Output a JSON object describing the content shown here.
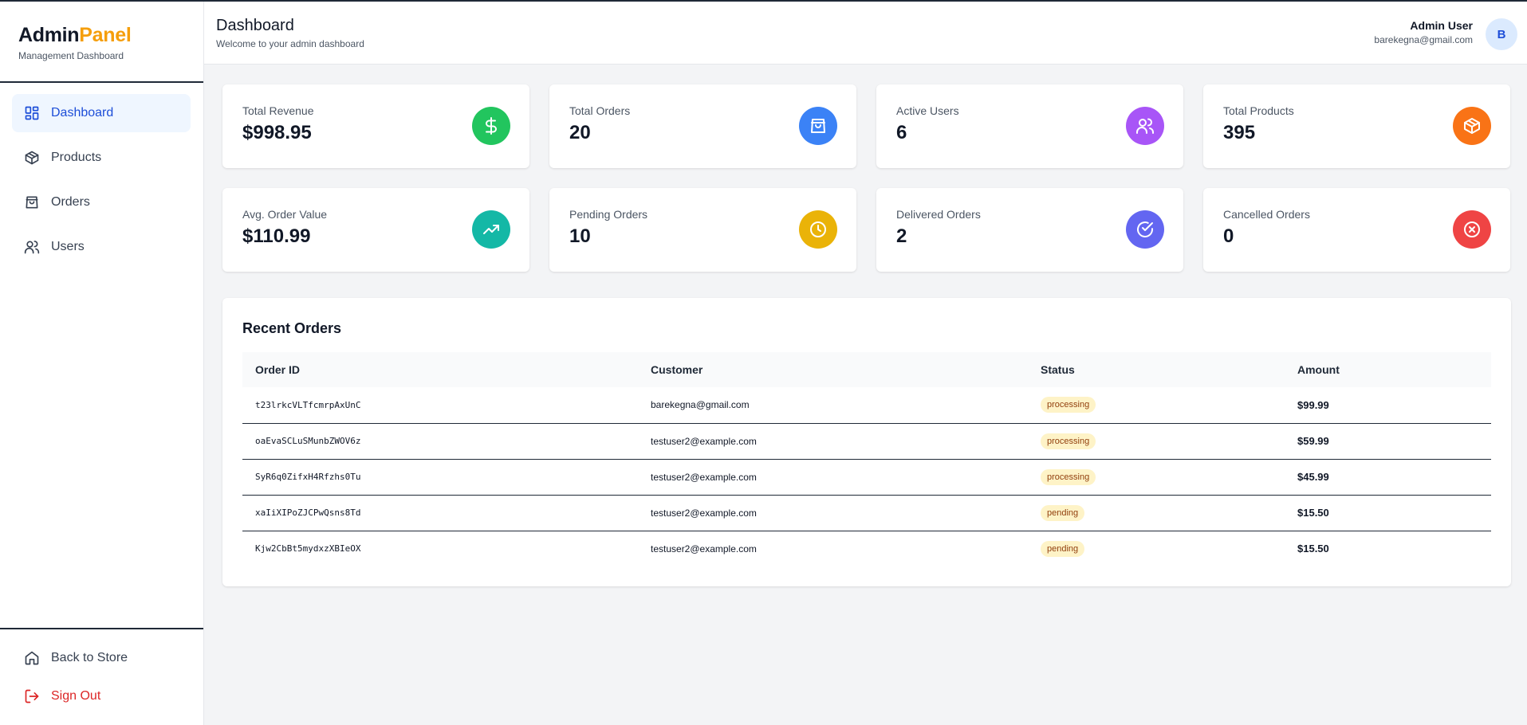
{
  "sidebar": {
    "brand_main": "Admin",
    "brand_accent": "Panel",
    "brand_sub": "Management Dashboard",
    "items": [
      {
        "label": "Dashboard",
        "icon": "dashboard-grid-icon",
        "active": true
      },
      {
        "label": "Products",
        "icon": "box-icon"
      },
      {
        "label": "Orders",
        "icon": "shopping-bag-icon"
      },
      {
        "label": "Users",
        "icon": "users-icon"
      }
    ],
    "back_label": "Back to Store",
    "signout_label": "Sign Out"
  },
  "header": {
    "title": "Dashboard",
    "subtitle": "Welcome to your admin dashboard",
    "user_name": "Admin User",
    "user_email": "barekegna@gmail.com",
    "avatar_initial": "B"
  },
  "stats": [
    {
      "label": "Total Revenue",
      "value": "$998.95",
      "icon": "dollar-icon",
      "color": "#22c55e"
    },
    {
      "label": "Total Orders",
      "value": "20",
      "icon": "shopping-bag-icon",
      "color": "#3b82f6"
    },
    {
      "label": "Active Users",
      "value": "6",
      "icon": "users-icon",
      "color": "#a855f7"
    },
    {
      "label": "Total Products",
      "value": "395",
      "icon": "box-icon",
      "color": "#f97316"
    },
    {
      "label": "Avg. Order Value",
      "value": "$110.99",
      "icon": "trending-up-icon",
      "color": "#14b8a6"
    },
    {
      "label": "Pending Orders",
      "value": "10",
      "icon": "clock-icon",
      "color": "#eab308"
    },
    {
      "label": "Delivered Orders",
      "value": "2",
      "icon": "check-circle-icon",
      "color": "#6366f1"
    },
    {
      "label": "Cancelled Orders",
      "value": "0",
      "icon": "x-circle-icon",
      "color": "#ef4444"
    }
  ],
  "recent_orders": {
    "title": "Recent Orders",
    "columns": [
      "Order ID",
      "Customer",
      "Status",
      "Amount"
    ],
    "rows": [
      {
        "id": "t23lrkcVLTfcmrpAxUnC",
        "customer": "barekegna@gmail.com",
        "status": "processing",
        "amount": "$99.99"
      },
      {
        "id": "oaEvaSCLuSMunbZWOV6z",
        "customer": "testuser2@example.com",
        "status": "processing",
        "amount": "$59.99"
      },
      {
        "id": "SyR6q0ZifxH4Rfzhs0Tu",
        "customer": "testuser2@example.com",
        "status": "processing",
        "amount": "$45.99"
      },
      {
        "id": "xaIiXIPoZJCPwQsns8Td",
        "customer": "testuser2@example.com",
        "status": "pending",
        "amount": "$15.50"
      },
      {
        "id": "Kjw2CbBt5mydxzXBIeOX",
        "customer": "testuser2@example.com",
        "status": "pending",
        "amount": "$15.50"
      }
    ]
  }
}
